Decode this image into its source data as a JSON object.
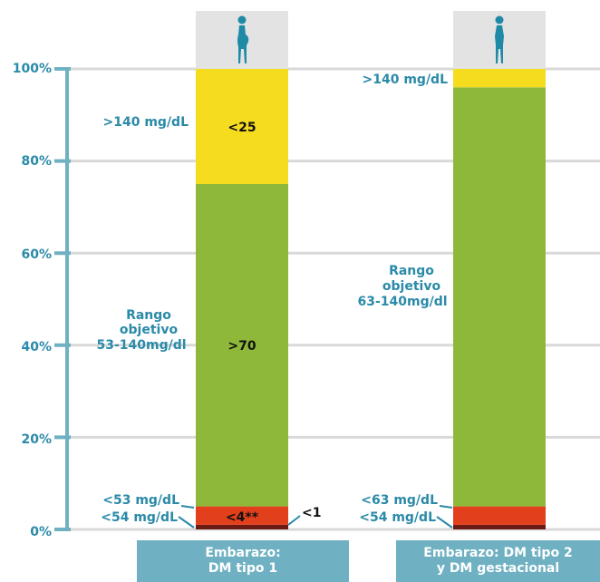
{
  "chart_data": {
    "type": "bar",
    "stacked": true,
    "yaxis_ticks": [
      "100%",
      "80%",
      "60%",
      "40%",
      "20%",
      "0%"
    ],
    "ylim": [
      0,
      100
    ],
    "grid": true,
    "columns": [
      {
        "label": "Embarazo:\nDM tipo 1",
        "segments": [
          {
            "range": "<54 mg/dL",
            "value": 1,
            "color": "#6b1a14",
            "value_label": "<1"
          },
          {
            "range": "<53 mg/dL",
            "value": 4,
            "color": "#e2401c",
            "value_label": "<4**"
          },
          {
            "range": "Rango objetivo 53-140mg/dl",
            "value": 70,
            "color": "#8db83a",
            "value_label": ">70"
          },
          {
            "range": ">140 mg/dL",
            "value": 25,
            "color": "#f6dc1f",
            "value_label": "<25"
          }
        ]
      },
      {
        "label": "Embarazo: DM tipo 2\ny DM gestacional",
        "segments": [
          {
            "range": "<54 mg/dL",
            "value": 1,
            "color": "#6b1a14"
          },
          {
            "range": "<63 mg/dL",
            "value": 4,
            "color": "#e2401c"
          },
          {
            "range": "Rango objetivo 63-140mg/dl",
            "value": 91,
            "color": "#8db83a"
          },
          {
            "range": ">140 mg/dL",
            "value": 4,
            "color": "#f6dc1f"
          }
        ]
      }
    ]
  },
  "labels": {
    "c1_above": ">140 mg/dL",
    "c1_target_1": "Rango",
    "c1_target_2": "objetivo",
    "c1_target_3": "53-140mg/dl",
    "c1_low1": "<53 mg/dL",
    "c1_low2": "<54 mg/dL",
    "c2_above": ">140 mg/dL",
    "c2_target_1": "Rango",
    "c2_target_2": "objetivo",
    "c2_target_3": "63-140mg/dl",
    "c2_low1": "<63 mg/dL",
    "c2_low2": "<54 mg/dL"
  },
  "icons": [
    "pregnant-woman-icon",
    "woman-icon"
  ],
  "colors": {
    "axis": "#6fb1c2",
    "text": "#2a8aa8",
    "grid": "#d9d9d9",
    "icon_bg": "#e3e3e3",
    "icon": "#1f8aa6"
  }
}
